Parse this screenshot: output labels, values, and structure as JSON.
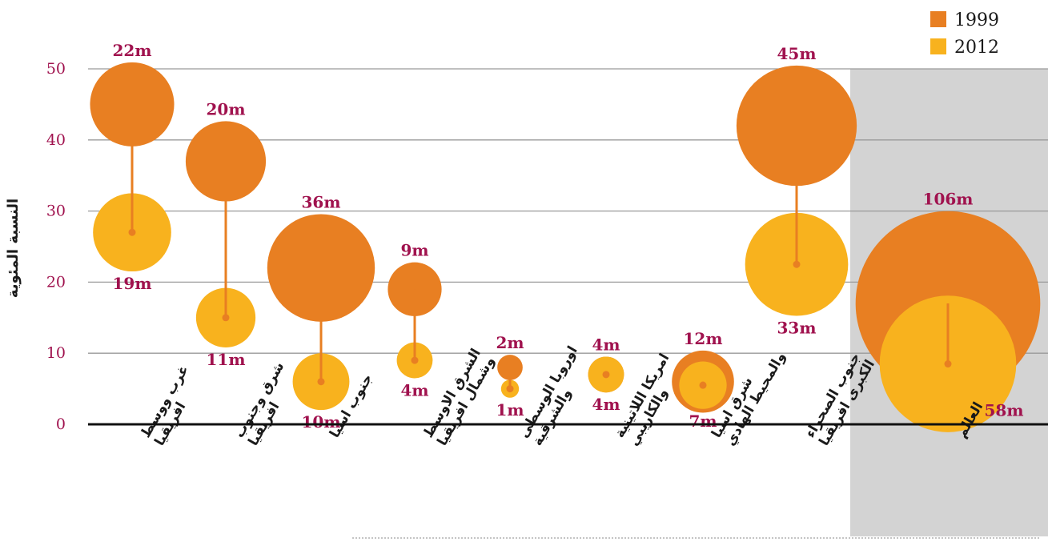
{
  "chart_data": {
    "type": "bubble",
    "ylabel": "النسبة المئوية",
    "ylim": [
      0,
      50
    ],
    "yticks": [
      0,
      10,
      20,
      30,
      40,
      50
    ],
    "grid": true,
    "legend_position": "top-right",
    "highlighted_category": "العالم",
    "categories": [
      [
        "غرب ووسط",
        "افريقيا"
      ],
      [
        "شرق وجنوب",
        "افريقيا"
      ],
      [
        "جنوب اسيا"
      ],
      [
        "الشرق الاوسط",
        "وشمال افريقيا"
      ],
      [
        "اوروبا الوسطى",
        "والشرقية"
      ],
      [
        "امريكا اللاتينية",
        "والكاريبي"
      ],
      [
        "شرق اسيا",
        "والمحيط الهادي"
      ],
      [
        "جنوب الصحراء",
        "الكبرى افريقيا"
      ],
      [
        "العالم"
      ]
    ],
    "series": [
      {
        "name": "1999",
        "color": "#e87f22",
        "values": [
          45,
          37,
          22,
          19,
          8,
          7,
          6,
          42,
          17
        ],
        "labels": [
          "22m",
          "20m",
          "36m",
          "9m",
          "2m",
          "4m",
          "12m",
          "45m",
          "106m"
        ],
        "counts_millions": [
          22,
          20,
          36,
          9,
          2,
          4,
          12,
          45,
          106
        ]
      },
      {
        "name": "2012",
        "color": "#f8b21e",
        "values": [
          27,
          15,
          6,
          9,
          5,
          7,
          5.5,
          22.5,
          8.5
        ],
        "labels": [
          "19m",
          "11m",
          "10m",
          "4m",
          "1m",
          "4m",
          "7m",
          "33m",
          "58m"
        ],
        "counts_millions": [
          19,
          11,
          10,
          4,
          1,
          4,
          7,
          33,
          58
        ]
      }
    ]
  }
}
